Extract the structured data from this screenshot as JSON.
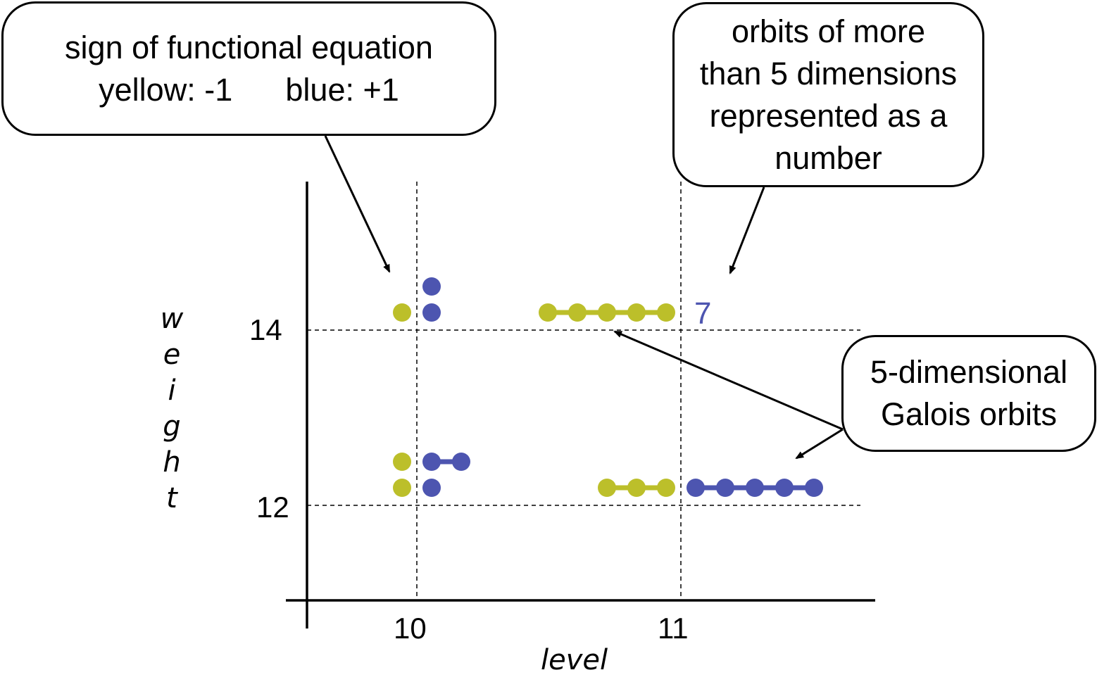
{
  "callouts": {
    "sign": {
      "line1": "sign of functional equation",
      "left": "yellow: -1",
      "right": "blue: +1"
    },
    "orbits": {
      "lines": [
        "orbits of more",
        "than 5 dimensions",
        "represented as a",
        "number"
      ]
    },
    "galois": {
      "lines": [
        "5-dimensional",
        "Galois orbits"
      ]
    }
  },
  "colors": {
    "yellow": "#bcbf2a",
    "blue": "#4d55b0"
  },
  "chart_data": {
    "type": "scatter",
    "xlabel": "level",
    "ylabel_letters": [
      "w",
      "e",
      "i",
      "g",
      "h",
      "t"
    ],
    "x_ticks": [
      "10",
      "11"
    ],
    "y_ticks": [
      "12",
      "14"
    ],
    "groups": [
      {
        "level": 10,
        "weight": 14,
        "sign": "yellow",
        "rows": [
          [
            1
          ]
        ]
      },
      {
        "level": 10,
        "weight": 14,
        "sign": "blue",
        "rows": [
          [
            1
          ],
          [
            1
          ]
        ]
      },
      {
        "level": 11,
        "weight": 14,
        "sign": "yellow",
        "rows": [
          [
            5
          ]
        ],
        "extra_count": "7"
      },
      {
        "level": 10,
        "weight": 12,
        "sign": "yellow",
        "rows": [
          [
            1
          ],
          [
            1
          ]
        ]
      },
      {
        "level": 10,
        "weight": 12,
        "sign": "blue",
        "rows": [
          [
            1
          ],
          [
            2
          ]
        ]
      },
      {
        "level": 11,
        "weight": 12,
        "sign": "yellow",
        "rows": [
          [
            3
          ]
        ]
      },
      {
        "level": 11,
        "weight": 12,
        "sign": "blue",
        "rows": [
          [
            5
          ]
        ]
      }
    ]
  }
}
